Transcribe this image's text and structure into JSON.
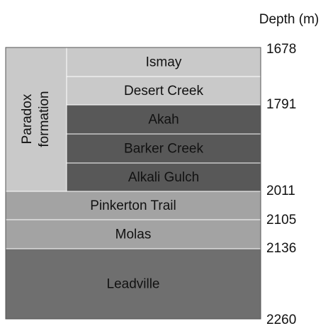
{
  "header": {
    "depth_label": "Depth (m)"
  },
  "group": {
    "lines": [
      "Paradox",
      "formation"
    ]
  },
  "units": [
    {
      "name": "Ismay"
    },
    {
      "name": "Desert Creek"
    },
    {
      "name": "Akah"
    },
    {
      "name": "Barker Creek"
    },
    {
      "name": "Alkali Gulch"
    },
    {
      "name": "Pinkerton Trail"
    },
    {
      "name": "Molas"
    },
    {
      "name": "Leadville"
    }
  ],
  "depths": [
    "1678",
    "1791",
    "2011",
    "2105",
    "2136",
    "2260"
  ]
}
